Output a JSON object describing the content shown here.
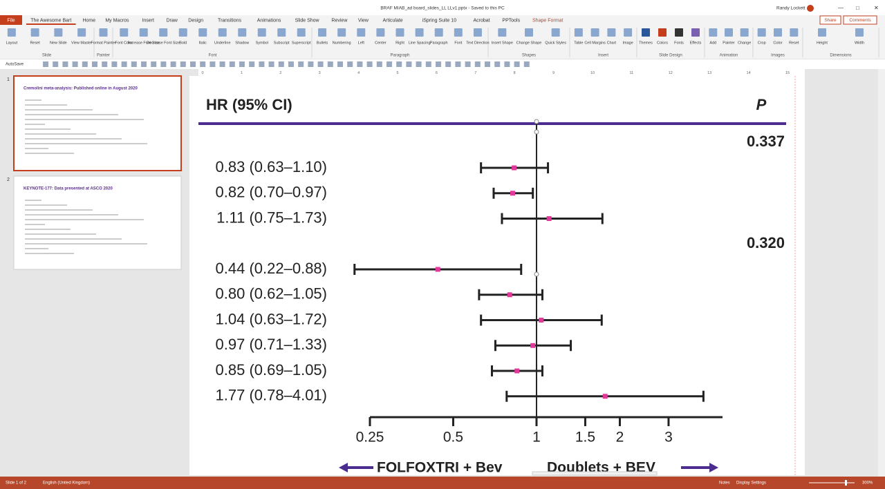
{
  "window": {
    "title": "BRAF MIAB_ad board_slides_LL LLv1.pptx  -  Saved to this PC",
    "user": "Randy Lockett"
  },
  "tabs": [
    "File",
    "The Awesome Bart",
    "Home",
    "My Macros",
    "Insert",
    "Draw",
    "Design",
    "Transitions",
    "Animations",
    "Slide Show",
    "Review",
    "View",
    "Articulate",
    "iSpring Suite 10",
    "Acrobat",
    "PPTools",
    "Shape Format"
  ],
  "share": "Share",
  "comments": "Comments",
  "ribbon": [
    {
      "name": "Slide",
      "buttons": [
        "Layout",
        "Reset",
        "New Slide",
        "View Master"
      ]
    },
    {
      "name": "Painter",
      "buttons": [
        "Format Painter"
      ]
    },
    {
      "name": "Font",
      "buttons": [
        "Font Color",
        "Increase Font Size",
        "Decrease Font Size",
        "Bold",
        "Italic",
        "Underline",
        "Shadow",
        "Symbol",
        "Subscript",
        "Superscript"
      ]
    },
    {
      "name": "Paragraph",
      "buttons": [
        "Bullets",
        "Numbering",
        "Left",
        "Center",
        "Right",
        "Line Spacing",
        "Paragraph",
        "Font",
        "Text Direction"
      ]
    },
    {
      "name": "Shapes",
      "buttons": [
        "Insert Shape",
        "Change Shape",
        "Quick Styles"
      ]
    },
    {
      "name": "Insert",
      "buttons": [
        "Table",
        "Cell Margins",
        "Chart",
        "Image"
      ]
    },
    {
      "name": "Slide Design",
      "buttons": [
        "Themes",
        "Colors",
        "Fonts",
        "Effects"
      ]
    },
    {
      "name": "Animation",
      "buttons": [
        "Add",
        "Painter",
        "Change"
      ]
    },
    {
      "name": "Images",
      "buttons": [
        "Crop",
        "Color",
        "Reset"
      ]
    },
    {
      "name": "Dimensions",
      "buttons": [
        "Height",
        "Width"
      ]
    }
  ],
  "autosave": "AutoSave",
  "ruler": [
    0,
    1,
    2,
    3,
    4,
    5,
    6,
    7,
    8,
    9,
    10,
    11,
    12,
    13,
    14,
    15
  ],
  "thumbnails": [
    {
      "number": "1",
      "title": "Cremolini meta-analysis: Published online in August 2020"
    },
    {
      "number": "2",
      "title": "KEYNOTE-177: Data presented at ASCO 2020"
    }
  ],
  "slide": {
    "header_left": "HR (95% CI)",
    "header_right": "P",
    "p_values": [
      "0.337",
      "0.320"
    ],
    "rows": [
      {
        "label": "0.83 (0.63–1.10)",
        "hr": 0.83,
        "lo": 0.63,
        "hi": 1.1
      },
      {
        "label": "0.82 (0.70–0.97)",
        "hr": 0.82,
        "lo": 0.7,
        "hi": 0.97
      },
      {
        "label": "1.11 (0.75–1.73)",
        "hr": 1.11,
        "lo": 0.75,
        "hi": 1.73
      },
      {
        "label": "0.44 (0.22–0.88)",
        "hr": 0.44,
        "lo": 0.22,
        "hi": 0.88
      },
      {
        "label": "0.80 (0.62–1.05)",
        "hr": 0.8,
        "lo": 0.62,
        "hi": 1.05
      },
      {
        "label": "1.04 (0.63–1.72)",
        "hr": 1.04,
        "lo": 0.63,
        "hi": 1.72
      },
      {
        "label": "0.97 (0.71–1.33)",
        "hr": 0.97,
        "lo": 0.71,
        "hi": 1.33
      },
      {
        "label": "0.85 (0.69–1.05)",
        "hr": 0.85,
        "lo": 0.69,
        "hi": 1.05
      },
      {
        "label": "1.77 (0.78–4.01)",
        "hr": 1.77,
        "lo": 0.78,
        "hi": 4.01
      }
    ],
    "xlim": [
      0.25,
      4.7
    ],
    "xticks": [
      0.25,
      0.5,
      1,
      1.5,
      2,
      3
    ],
    "log_scale": true,
    "marker_color": "#e0399a",
    "rule_color": "#4b2d8f",
    "left_arrow_label": "FOLFOXTRI + Bev",
    "right_arrow_label": "Doublets + BEV"
  },
  "status": {
    "slide": "Slide 1 of 2",
    "language": "English (United Kingdom)",
    "notes": "Notes",
    "display": "Display Settings",
    "zoom": "300%"
  }
}
